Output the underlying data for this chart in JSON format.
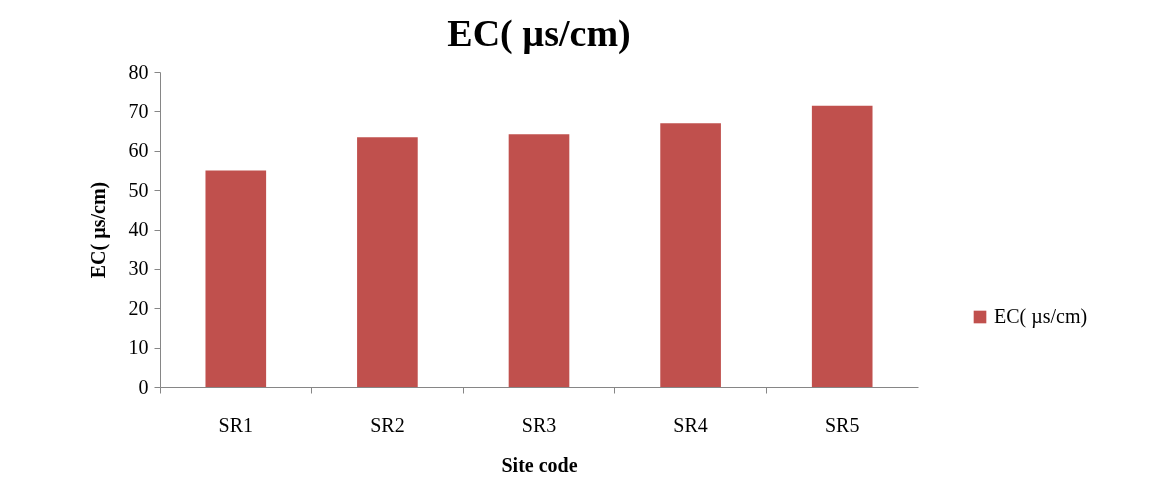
{
  "chart_data": {
    "type": "bar",
    "title": "EC( µs/cm)",
    "xlabel": "Site code",
    "ylabel": "EC( µs/cm)",
    "categories": [
      "SR1",
      "SR2",
      "SR3",
      "SR4",
      "SR5"
    ],
    "series": [
      {
        "name": "EC( µs/cm)",
        "color": "#c0504d",
        "values": [
          55.0,
          63.4,
          64.2,
          67.0,
          71.4
        ]
      }
    ],
    "ylim": [
      0,
      80
    ],
    "yticks": [
      0,
      10,
      20,
      30,
      40,
      50,
      60,
      70,
      80
    ],
    "grid": false,
    "legend": "right"
  }
}
